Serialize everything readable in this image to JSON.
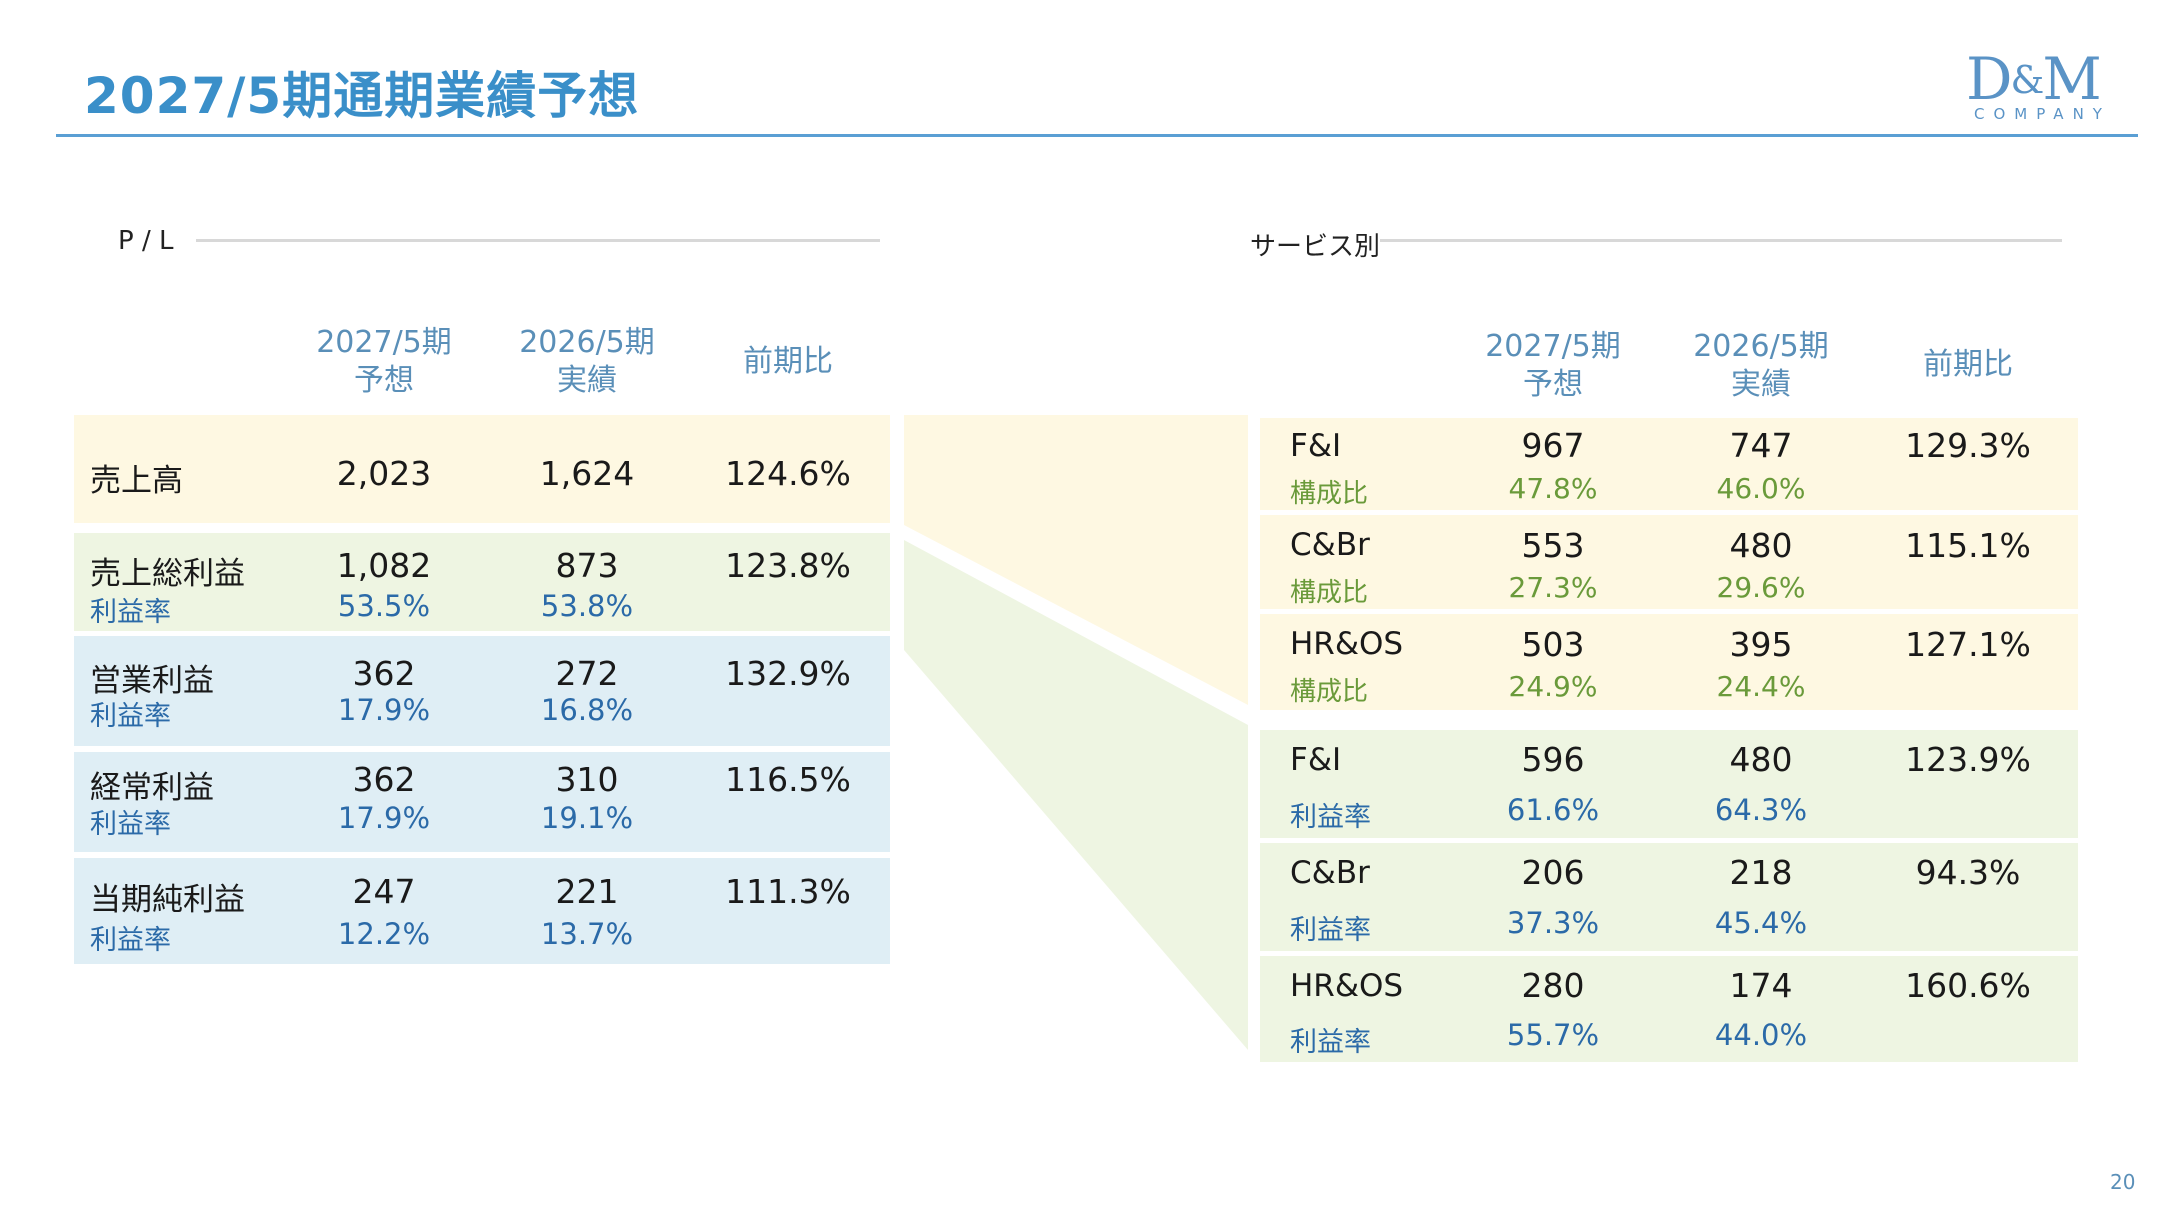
{
  "title": "2027/5期通期業績予想",
  "logo": {
    "mark_left": "D",
    "mark_amp": "&",
    "mark_right": "M",
    "subtitle": "COMPANY"
  },
  "page_number": "20",
  "pl": {
    "section_label": "P / L",
    "headers": {
      "col1_line1": "2027/5期",
      "col1_line2": "予想",
      "col2_line1": "2026/5期",
      "col2_line2": "実績",
      "col3": "前期比"
    },
    "rows": [
      {
        "label": "売上高",
        "forecast": "2,023",
        "actual": "1,624",
        "yoy": "124.6%"
      },
      {
        "label": "売上総利益",
        "forecast": "1,082",
        "actual": "873",
        "yoy": "123.8%",
        "sub_label": "利益率",
        "sub_forecast": "53.5%",
        "sub_actual": "53.8%"
      },
      {
        "label": "営業利益",
        "forecast": "362",
        "actual": "272",
        "yoy": "132.9%",
        "sub_label": "利益率",
        "sub_forecast": "17.9%",
        "sub_actual": "16.8%"
      },
      {
        "label": "経常利益",
        "forecast": "362",
        "actual": "310",
        "yoy": "116.5%",
        "sub_label": "利益率",
        "sub_forecast": "17.9%",
        "sub_actual": "19.1%"
      },
      {
        "label": "当期純利益",
        "forecast": "247",
        "actual": "221",
        "yoy": "111.3%",
        "sub_label": "利益率",
        "sub_forecast": "12.2%",
        "sub_actual": "13.7%"
      }
    ]
  },
  "service": {
    "section_label": "サービス別",
    "headers": {
      "col1_line1": "2027/5期",
      "col1_line2": "予想",
      "col2_line1": "2026/5期",
      "col2_line2": "実績",
      "col3": "前期比"
    },
    "sales_rows": [
      {
        "label": "F&I",
        "forecast": "967",
        "actual": "747",
        "yoy": "129.3%",
        "sub_label": "構成比",
        "sub_forecast": "47.8%",
        "sub_actual": "46.0%"
      },
      {
        "label": "C&Br",
        "forecast": "553",
        "actual": "480",
        "yoy": "115.1%",
        "sub_label": "構成比",
        "sub_forecast": "27.3%",
        "sub_actual": "29.6%"
      },
      {
        "label": "HR&OS",
        "forecast": "503",
        "actual": "395",
        "yoy": "127.1%",
        "sub_label": "構成比",
        "sub_forecast": "24.9%",
        "sub_actual": "24.4%"
      }
    ],
    "profit_rows": [
      {
        "label": "F&I",
        "forecast": "596",
        "actual": "480",
        "yoy": "123.9%",
        "sub_label": "利益率",
        "sub_forecast": "61.6%",
        "sub_actual": "64.3%"
      },
      {
        "label": "C&Br",
        "forecast": "206",
        "actual": "218",
        "yoy": "94.3%",
        "sub_label": "利益率",
        "sub_forecast": "37.3%",
        "sub_actual": "45.4%"
      },
      {
        "label": "HR&OS",
        "forecast": "280",
        "actual": "174",
        "yoy": "160.6%",
        "sub_label": "利益率",
        "sub_forecast": "55.7%",
        "sub_actual": "44.0%"
      }
    ]
  },
  "colors": {
    "accent": "#3a8fc9",
    "sales_band": "#fef8e2",
    "profit_band": "#eef5e2",
    "margin_band": "#dfeef5",
    "margin_text": "#2b6aa8",
    "composition_text": "#6a9a3a"
  }
}
